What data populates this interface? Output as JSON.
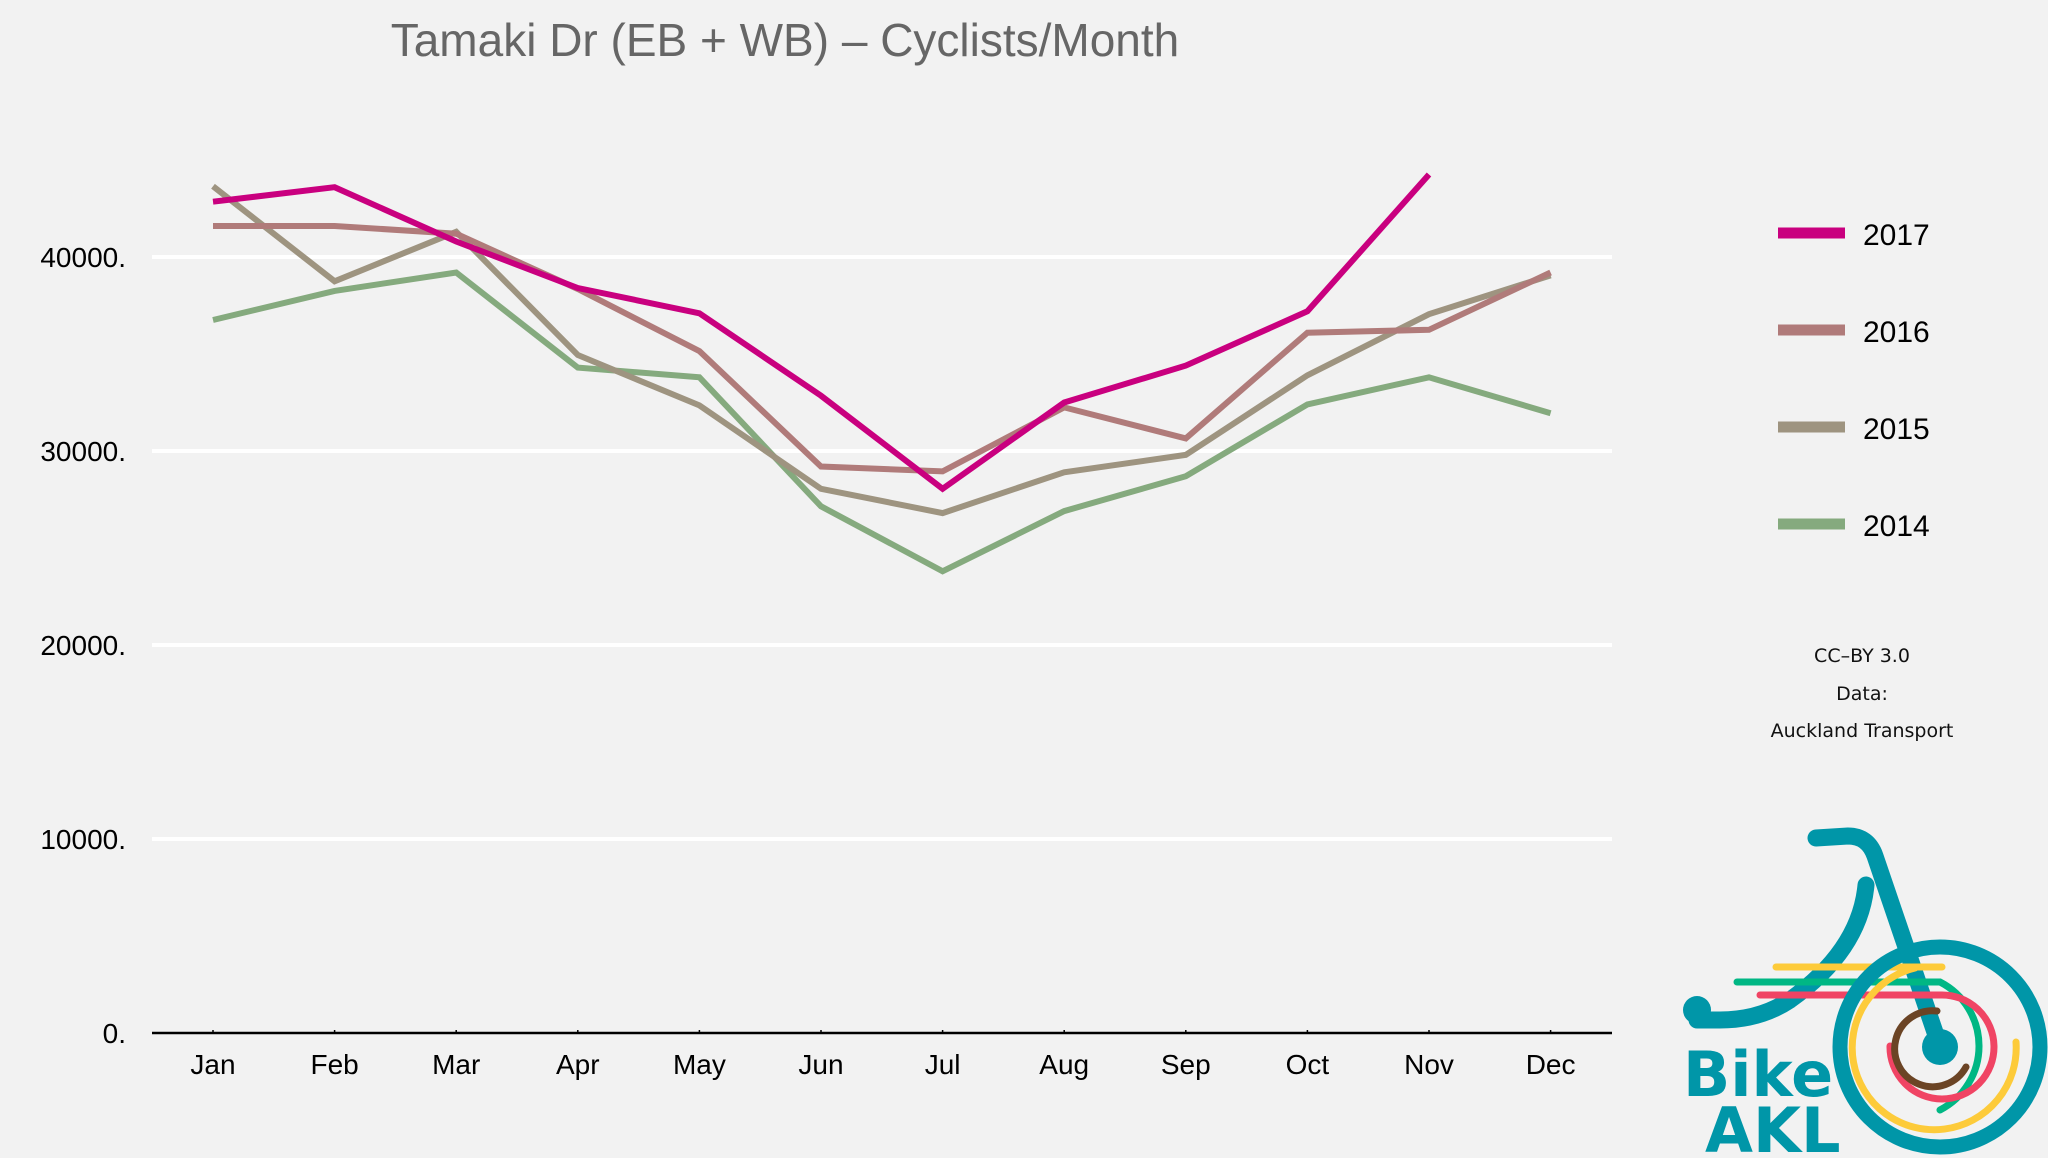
{
  "chart_data": {
    "type": "line",
    "title": "Tamaki Dr (EB + WB) – Cyclists/Month",
    "xlabel": "",
    "ylabel": "",
    "categories": [
      "Jan",
      "Feb",
      "Mar",
      "Apr",
      "May",
      "Jun",
      "Jul",
      "Aug",
      "Sep",
      "Oct",
      "Nov",
      "Dec"
    ],
    "ylim": [
      0,
      48000
    ],
    "yticks": [
      0,
      10000,
      20000,
      30000,
      40000
    ],
    "ytick_labels": [
      "0.",
      "10000.",
      "20000.",
      "30000.",
      "40000."
    ],
    "grid": true,
    "legend_position": "right",
    "series": [
      {
        "name": "2017",
        "color": "#c9007f",
        "values": [
          42850,
          43600,
          40800,
          38400,
          37100,
          32850,
          28050,
          32500,
          34400,
          37200,
          44250,
          null
        ]
      },
      {
        "name": "2016",
        "color": "#b07b7a",
        "values": [
          41600,
          41600,
          41200,
          38350,
          35150,
          29200,
          28950,
          32250,
          30650,
          36100,
          36250,
          39200
        ]
      },
      {
        "name": "2015",
        "color": "#9e9480",
        "values": [
          43650,
          38750,
          41300,
          34950,
          32350,
          28050,
          26800,
          28900,
          29800,
          33900,
          37050,
          39050
        ]
      },
      {
        "name": "2014",
        "color": "#85aa7e",
        "values": [
          36750,
          38250,
          39200,
          34300,
          33800,
          27150,
          23800,
          26900,
          28700,
          32400,
          33800,
          31950
        ]
      }
    ]
  },
  "credits": {
    "license": "CC–BY 3.0",
    "data_label": "Data:",
    "source": "Auckland Transport"
  },
  "logo": {
    "line1": "Bike",
    "line2": "AKL",
    "brand_color": "#0096a8"
  }
}
